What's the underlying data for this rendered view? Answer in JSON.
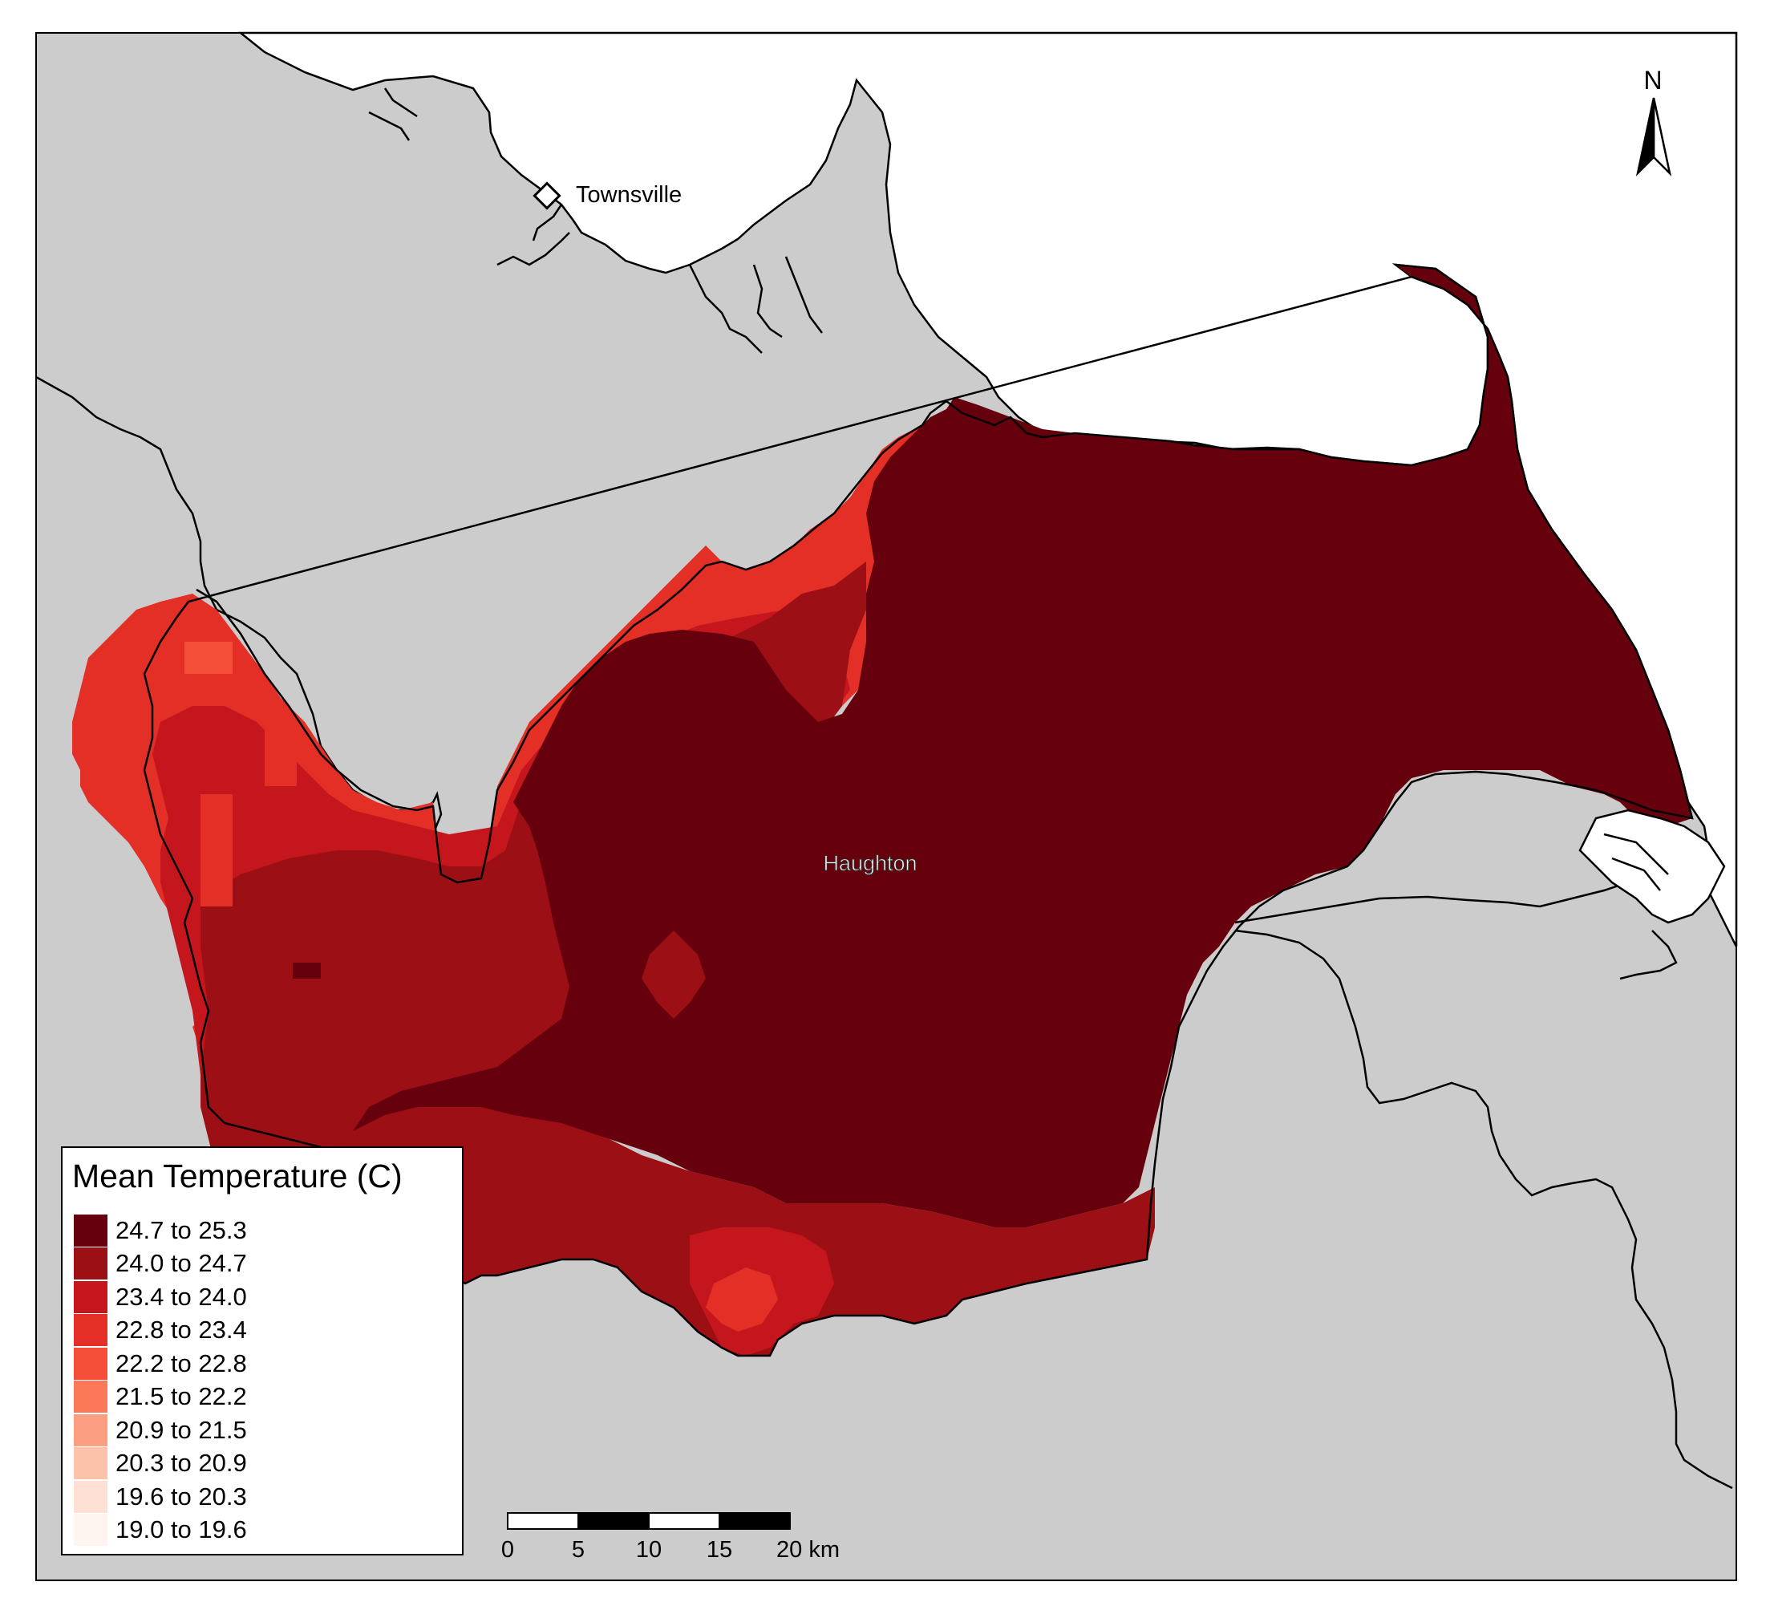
{
  "map": {
    "north_label": "N",
    "city_label": "Townsville",
    "region_label": "Haughton",
    "colors": {
      "land": "#cccccc",
      "water": "#ffffff",
      "border": "#000000"
    }
  },
  "legend": {
    "title": "Mean Temperature (C)",
    "items": [
      {
        "label": "24.7 to 25.3",
        "color": "#67000d"
      },
      {
        "label": "24.0 to 24.7",
        "color": "#9c0f15"
      },
      {
        "label": "23.4 to 24.0",
        "color": "#c4161c"
      },
      {
        "label": "22.8 to 23.4",
        "color": "#e32f26"
      },
      {
        "label": "22.2 to 22.8",
        "color": "#f44e38"
      },
      {
        "label": "21.5 to 22.2",
        "color": "#fb7959"
      },
      {
        "label": "20.9 to 21.5",
        "color": "#fc9e81"
      },
      {
        "label": "20.3 to 20.9",
        "color": "#fcc2aa"
      },
      {
        "label": "19.6 to 20.3",
        "color": "#fee1d4"
      },
      {
        "label": "19.0 to 19.6",
        "color": "#fff5f0"
      }
    ]
  },
  "scale_bar": {
    "ticks": [
      "0",
      "5",
      "10",
      "15",
      "20 km"
    ]
  }
}
